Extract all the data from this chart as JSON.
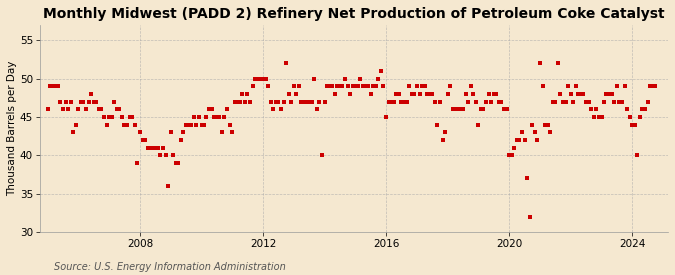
{
  "title": "Monthly Midwest (PADD 2) Refinery Net Production of Petroleum Coke Catalyst",
  "ylabel": "Thousand Barrels per Day",
  "source": "Source: U.S. Energy Information Administration",
  "background_color": "#f5e8d0",
  "plot_bg_color": "#f5e8d0",
  "marker_color": "#cc0000",
  "marker_size": 9,
  "ylim": [
    30,
    57
  ],
  "yticks": [
    30,
    35,
    40,
    45,
    50,
    55
  ],
  "grid_color": "#aaaaaa",
  "vgrid_color": "#aaaaaa",
  "title_fontsize": 10,
  "ylabel_fontsize": 7.5,
  "tick_fontsize": 7.5,
  "source_fontsize": 7,
  "data": {
    "2005-01": 46,
    "2005-02": 49,
    "2005-03": 49,
    "2005-04": 49,
    "2005-05": 49,
    "2005-06": 47,
    "2005-07": 46,
    "2005-08": 47,
    "2005-09": 46,
    "2005-10": 47,
    "2005-11": 43,
    "2005-12": 44,
    "2006-01": 46,
    "2006-02": 47,
    "2006-03": 47,
    "2006-04": 46,
    "2006-05": 47,
    "2006-06": 48,
    "2006-07": 47,
    "2006-08": 47,
    "2006-09": 46,
    "2006-10": 46,
    "2006-11": 45,
    "2006-12": 44,
    "2007-01": 45,
    "2007-02": 45,
    "2007-03": 47,
    "2007-04": 46,
    "2007-05": 46,
    "2007-06": 45,
    "2007-07": 44,
    "2007-08": 44,
    "2007-09": 45,
    "2007-10": 45,
    "2007-11": 44,
    "2007-12": 39,
    "2008-01": 43,
    "2008-02": 42,
    "2008-03": 42,
    "2008-04": 41,
    "2008-05": 41,
    "2008-06": 41,
    "2008-07": 41,
    "2008-08": 41,
    "2008-09": 40,
    "2008-10": 41,
    "2008-11": 40,
    "2008-12": 36,
    "2009-01": 43,
    "2009-02": 40,
    "2009-03": 39,
    "2009-04": 39,
    "2009-05": 42,
    "2009-06": 43,
    "2009-07": 44,
    "2009-08": 44,
    "2009-09": 44,
    "2009-10": 45,
    "2009-11": 44,
    "2009-12": 45,
    "2010-01": 44,
    "2010-02": 44,
    "2010-03": 45,
    "2010-04": 46,
    "2010-05": 46,
    "2010-06": 45,
    "2010-07": 45,
    "2010-08": 45,
    "2010-09": 43,
    "2010-10": 45,
    "2010-11": 46,
    "2010-12": 44,
    "2011-01": 43,
    "2011-02": 47,
    "2011-03": 47,
    "2011-04": 47,
    "2011-05": 48,
    "2011-06": 47,
    "2011-07": 48,
    "2011-08": 47,
    "2011-09": 49,
    "2011-10": 50,
    "2011-11": 50,
    "2011-12": 50,
    "2012-01": 50,
    "2012-02": 50,
    "2012-03": 49,
    "2012-04": 47,
    "2012-05": 46,
    "2012-06": 47,
    "2012-07": 47,
    "2012-08": 46,
    "2012-09": 47,
    "2012-10": 52,
    "2012-11": 48,
    "2012-12": 47,
    "2013-01": 49,
    "2013-02": 48,
    "2013-03": 49,
    "2013-04": 47,
    "2013-05": 47,
    "2013-06": 47,
    "2013-07": 47,
    "2013-08": 47,
    "2013-09": 50,
    "2013-10": 46,
    "2013-11": 47,
    "2013-12": 40,
    "2014-01": 47,
    "2014-02": 49,
    "2014-03": 49,
    "2014-04": 49,
    "2014-05": 48,
    "2014-06": 49,
    "2014-07": 49,
    "2014-08": 49,
    "2014-09": 50,
    "2014-10": 49,
    "2014-11": 48,
    "2014-12": 49,
    "2015-01": 49,
    "2015-02": 49,
    "2015-03": 50,
    "2015-04": 49,
    "2015-05": 49,
    "2015-06": 49,
    "2015-07": 48,
    "2015-08": 49,
    "2015-09": 49,
    "2015-10": 50,
    "2015-11": 51,
    "2015-12": 49,
    "2016-01": 45,
    "2016-02": 47,
    "2016-03": 47,
    "2016-04": 47,
    "2016-05": 48,
    "2016-06": 48,
    "2016-07": 47,
    "2016-08": 47,
    "2016-09": 47,
    "2016-10": 49,
    "2016-11": 48,
    "2016-12": 48,
    "2017-01": 49,
    "2017-02": 48,
    "2017-03": 49,
    "2017-04": 49,
    "2017-05": 48,
    "2017-06": 48,
    "2017-07": 48,
    "2017-08": 47,
    "2017-09": 44,
    "2017-10": 47,
    "2017-11": 42,
    "2017-12": 43,
    "2018-01": 48,
    "2018-02": 49,
    "2018-03": 46,
    "2018-04": 46,
    "2018-05": 46,
    "2018-06": 46,
    "2018-07": 46,
    "2018-08": 48,
    "2018-09": 47,
    "2018-10": 49,
    "2018-11": 48,
    "2018-12": 47,
    "2019-01": 44,
    "2019-02": 46,
    "2019-03": 46,
    "2019-04": 47,
    "2019-05": 48,
    "2019-06": 47,
    "2019-07": 48,
    "2019-08": 48,
    "2019-09": 47,
    "2019-10": 47,
    "2019-11": 46,
    "2019-12": 46,
    "2020-01": 40,
    "2020-02": 40,
    "2020-03": 41,
    "2020-04": 42,
    "2020-05": 42,
    "2020-06": 43,
    "2020-07": 42,
    "2020-08": 37,
    "2020-09": 32,
    "2020-10": 44,
    "2020-11": 43,
    "2020-12": 42,
    "2021-01": 52,
    "2021-02": 49,
    "2021-03": 44,
    "2021-04": 44,
    "2021-05": 43,
    "2021-06": 47,
    "2021-07": 47,
    "2021-08": 52,
    "2021-09": 48,
    "2021-10": 47,
    "2021-11": 47,
    "2021-12": 49,
    "2022-01": 48,
    "2022-02": 47,
    "2022-03": 49,
    "2022-04": 48,
    "2022-05": 48,
    "2022-06": 48,
    "2022-07": 47,
    "2022-08": 47,
    "2022-09": 46,
    "2022-10": 45,
    "2022-11": 46,
    "2022-12": 45,
    "2023-01": 45,
    "2023-02": 47,
    "2023-03": 48,
    "2023-04": 48,
    "2023-05": 48,
    "2023-06": 47,
    "2023-07": 49,
    "2023-08": 47,
    "2023-09": 47,
    "2023-10": 49,
    "2023-11": 46,
    "2023-12": 45,
    "2024-01": 44,
    "2024-02": 44,
    "2024-03": 40,
    "2024-04": 45,
    "2024-05": 46,
    "2024-06": 46,
    "2024-07": 47,
    "2024-08": 49,
    "2024-09": 49,
    "2024-10": 49
  }
}
